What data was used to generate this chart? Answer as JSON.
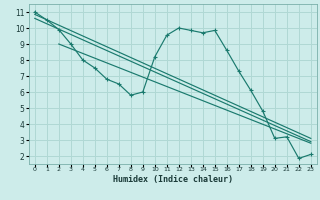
{
  "xlabel": "Humidex (Indice chaleur)",
  "bg_color": "#cdecea",
  "grid_color": "#b0d8d4",
  "line_color": "#1a7a6e",
  "xlim": [
    -0.5,
    23.5
  ],
  "ylim": [
    1.5,
    11.5
  ],
  "xticks": [
    0,
    1,
    2,
    3,
    4,
    5,
    6,
    7,
    8,
    9,
    10,
    11,
    12,
    13,
    14,
    15,
    16,
    17,
    18,
    19,
    20,
    21,
    22,
    23
  ],
  "yticks": [
    2,
    3,
    4,
    5,
    6,
    7,
    8,
    9,
    10,
    11
  ],
  "zigzag_x": [
    0,
    1,
    2,
    3,
    4,
    5,
    6,
    7,
    8,
    9,
    10,
    11,
    12,
    13,
    14,
    15,
    16,
    17,
    18,
    19,
    20,
    21,
    22,
    23
  ],
  "zigzag_y": [
    11.0,
    10.5,
    9.9,
    9.0,
    8.0,
    7.5,
    6.8,
    6.5,
    5.8,
    6.0,
    8.2,
    9.55,
    10.0,
    9.85,
    9.7,
    9.85,
    8.6,
    7.3,
    6.1,
    4.8,
    3.1,
    3.2,
    1.85,
    2.1
  ],
  "line1_x": [
    0,
    23
  ],
  "line1_y": [
    10.85,
    3.1
  ],
  "line2_x": [
    0,
    23
  ],
  "line2_y": [
    10.6,
    2.9
  ],
  "line3_x": [
    2,
    23
  ],
  "line3_y": [
    9.0,
    2.8
  ]
}
